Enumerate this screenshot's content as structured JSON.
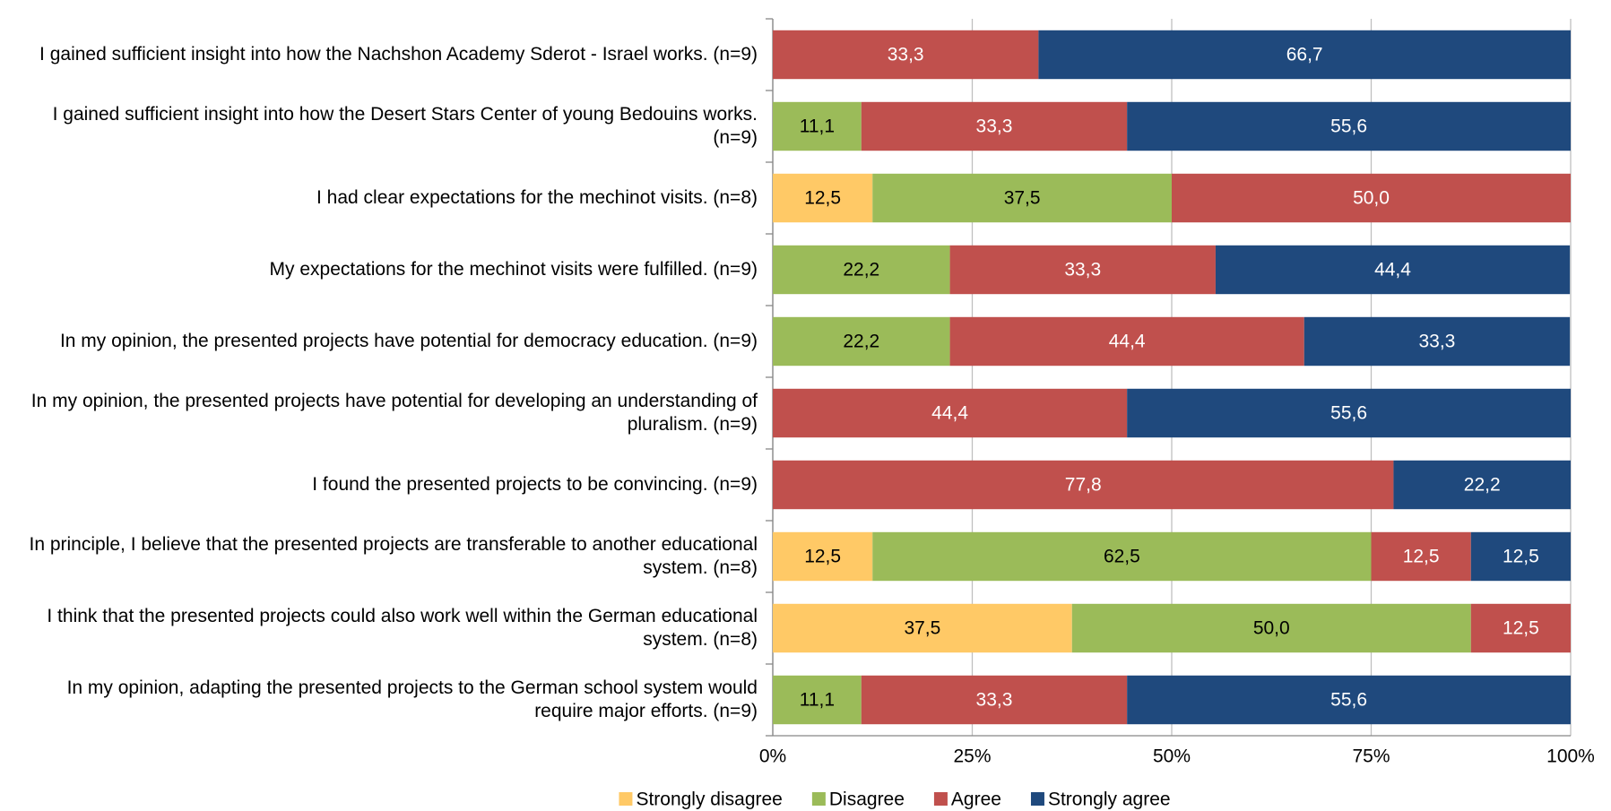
{
  "chart_data": {
    "type": "stacked_barh",
    "categories": [
      "I gained sufficient insight into how the Nachshon Academy Sderot - Israel works. (n=9)",
      "I gained sufficient insight into how the Desert Stars Center of young Bedouins works. (n=9)",
      "I had clear expectations for the mechinot visits. (n=8)",
      "My expectations for the mechinot visits were fulfilled. (n=9)",
      "In my opinion, the presented projects have potential for democracy education. (n=9)",
      "In my opinion, the presented projects have potential for developing an understanding of pluralism. (n=9)",
      "I found the presented projects to be convincing. (n=9)",
      "In principle, I believe that the presented projects are transferable to another educational system. (n=8)",
      "I think that the presented projects could also work well within the German educational system. (n=8)",
      "In my opinion, adapting the presented projects to the German school system would require major efforts. (n=9)"
    ],
    "series": [
      {
        "name": "Strongly disagree",
        "color": "#FFC966",
        "values": [
          null,
          null,
          12.5,
          null,
          null,
          null,
          null,
          12.5,
          37.5,
          null
        ],
        "value_labels": [
          null,
          null,
          "12,5",
          null,
          null,
          null,
          null,
          "12,5",
          "37,5",
          null
        ]
      },
      {
        "name": "Disagree",
        "color": "#9BBB59",
        "values": [
          null,
          11.1,
          37.5,
          22.2,
          22.2,
          null,
          null,
          62.5,
          50.0,
          11.1
        ],
        "value_labels": [
          null,
          "11,1",
          "37,5",
          "22,2",
          "22,2",
          null,
          null,
          "62,5",
          "50,0",
          "11,1"
        ]
      },
      {
        "name": "Agree",
        "color": "#C0504D",
        "values": [
          33.3,
          33.3,
          50.0,
          33.3,
          44.4,
          44.4,
          77.8,
          12.5,
          12.5,
          33.3
        ],
        "value_labels": [
          "33,3",
          "33,3",
          "50,0",
          "33,3",
          "44,4",
          "44,4",
          "77,8",
          "12,5",
          "12,5",
          "33,3"
        ]
      },
      {
        "name": "Strongly agree",
        "color": "#1F497D",
        "values": [
          66.7,
          55.6,
          null,
          44.4,
          33.3,
          55.6,
          22.2,
          12.5,
          null,
          55.6
        ],
        "value_labels": [
          "66,7",
          "55,6",
          null,
          "44,4",
          "33,3",
          "55,6",
          "22,2",
          "12,5",
          null,
          "55,6"
        ]
      }
    ],
    "xlim": [
      0,
      100
    ],
    "xticks": [
      {
        "value": 0,
        "label": "0%"
      },
      {
        "value": 25,
        "label": "25%"
      },
      {
        "value": 50,
        "label": "50%"
      },
      {
        "value": 75,
        "label": "75%"
      },
      {
        "value": 100,
        "label": "100%"
      }
    ],
    "grid": true,
    "legend": "bottom"
  }
}
